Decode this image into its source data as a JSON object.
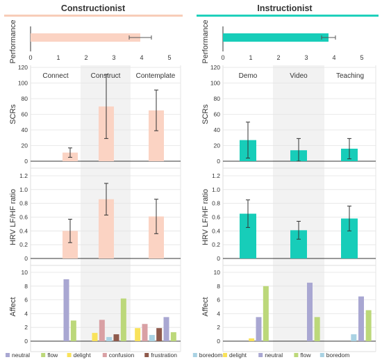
{
  "chart_data": [
    {
      "type": "bar",
      "panel": "constructionist",
      "title": "Constructionist",
      "header_color": "#f8cdb8",
      "performance": {
        "ylabel": "Performance",
        "xlim": [
          0,
          5
        ],
        "ticks": [
          "0",
          "1",
          "2",
          "3",
          "4",
          "5"
        ],
        "value": 3.95,
        "err": 0.4,
        "color": "#fbd3c3"
      },
      "categories": [
        "Connect",
        "Construct",
        "Contemplate"
      ],
      "scrs": {
        "ylabel": "SCRs",
        "ylim": [
          0,
          120
        ],
        "ticks": [
          "0",
          "20",
          "40",
          "60",
          "80",
          "100",
          "120"
        ],
        "values": [
          11,
          70,
          65
        ],
        "err": [
          6,
          41,
          26
        ],
        "color": "#fbd3c3"
      },
      "hrv": {
        "ylabel": "HRV LF/HF ratio",
        "ylim": [
          0,
          1.2
        ],
        "ticks": [
          "0",
          "0.2",
          "0.4",
          "0.6",
          "0.8",
          "1.0",
          "1.2"
        ],
        "values": [
          0.4,
          0.86,
          0.61
        ],
        "err": [
          0.17,
          0.23,
          0.25
        ],
        "color": "#fbd3c3"
      },
      "affect": {
        "ylabel": "Affect",
        "ylim": [
          0,
          10
        ],
        "ticks": [
          "0",
          "2",
          "4",
          "6",
          "8",
          "10"
        ],
        "legend": [
          {
            "name": "neutral",
            "color": "#a9a7d2"
          },
          {
            "name": "flow",
            "color": "#bcd87a"
          },
          {
            "name": "delight",
            "color": "#f9e25a"
          },
          {
            "name": "confusion",
            "color": "#d9a0a4"
          },
          {
            "name": "frustration",
            "color": "#8f5a4c"
          },
          {
            "name": "boredom",
            "color": "#a9d2e3"
          }
        ],
        "groups": [
          [
            {
              "s": "neutral",
              "v": 9.0
            },
            {
              "s": "flow",
              "v": 3.0
            }
          ],
          [
            {
              "s": "delight",
              "v": 1.2
            },
            {
              "s": "confusion",
              "v": 3.1
            },
            {
              "s": "boredom",
              "v": 0.6
            },
            {
              "s": "frustration",
              "v": 1.0
            },
            {
              "s": "flow",
              "v": 6.2
            }
          ],
          [
            {
              "s": "delight",
              "v": 1.9
            },
            {
              "s": "confusion",
              "v": 2.5
            },
            {
              "s": "boredom",
              "v": 0.9
            },
            {
              "s": "frustration",
              "v": 1.9
            },
            {
              "s": "neutral",
              "v": 3.5
            },
            {
              "s": "flow",
              "v": 1.3
            }
          ]
        ]
      }
    },
    {
      "type": "bar",
      "panel": "instructionist",
      "title": "Instructionist",
      "header_color": "#1fd0bb",
      "performance": {
        "ylabel": "Performance",
        "xlim": [
          0,
          5
        ],
        "ticks": [
          "0",
          "1",
          "2",
          "3",
          "4",
          "5"
        ],
        "value": 3.8,
        "err": 0.25,
        "color": "#17cdb9"
      },
      "categories": [
        "Demo",
        "Video",
        "Teaching"
      ],
      "scrs": {
        "ylabel": "SCRs",
        "ylim": [
          0,
          120
        ],
        "ticks": [
          "0",
          "20",
          "40",
          "60",
          "80",
          "100",
          "120"
        ],
        "values": [
          27,
          14,
          16
        ],
        "err": [
          23,
          15,
          13
        ],
        "color": "#17cdb9"
      },
      "hrv": {
        "ylabel": "HRV LF/HF ratio",
        "ylim": [
          0,
          1.2
        ],
        "ticks": [
          "0",
          "0.2",
          "0.4",
          "0.6",
          "0.8",
          "1.0",
          "1.2"
        ],
        "values": [
          0.65,
          0.41,
          0.58
        ],
        "err": [
          0.2,
          0.13,
          0.18
        ],
        "color": "#17cdb9"
      },
      "affect": {
        "ylabel": "Affect",
        "ylim": [
          0,
          10
        ],
        "ticks": [
          "0",
          "2",
          "4",
          "6",
          "8",
          "10"
        ],
        "legend": [
          {
            "name": "delight",
            "color": "#f9e25a"
          },
          {
            "name": "neutral",
            "color": "#a9a7d2"
          },
          {
            "name": "flow",
            "color": "#bcd87a"
          },
          {
            "name": "boredom",
            "color": "#a9d2e3"
          }
        ],
        "groups": [
          [
            {
              "s": "delight",
              "v": 0.4
            },
            {
              "s": "neutral",
              "v": 3.5
            },
            {
              "s": "flow",
              "v": 8.0
            }
          ],
          [
            {
              "s": "neutral",
              "v": 8.5
            },
            {
              "s": "flow",
              "v": 3.5
            }
          ],
          [
            {
              "s": "boredom",
              "v": 1.0
            },
            {
              "s": "neutral",
              "v": 6.5
            },
            {
              "s": "flow",
              "v": 4.5
            }
          ]
        ]
      }
    }
  ]
}
